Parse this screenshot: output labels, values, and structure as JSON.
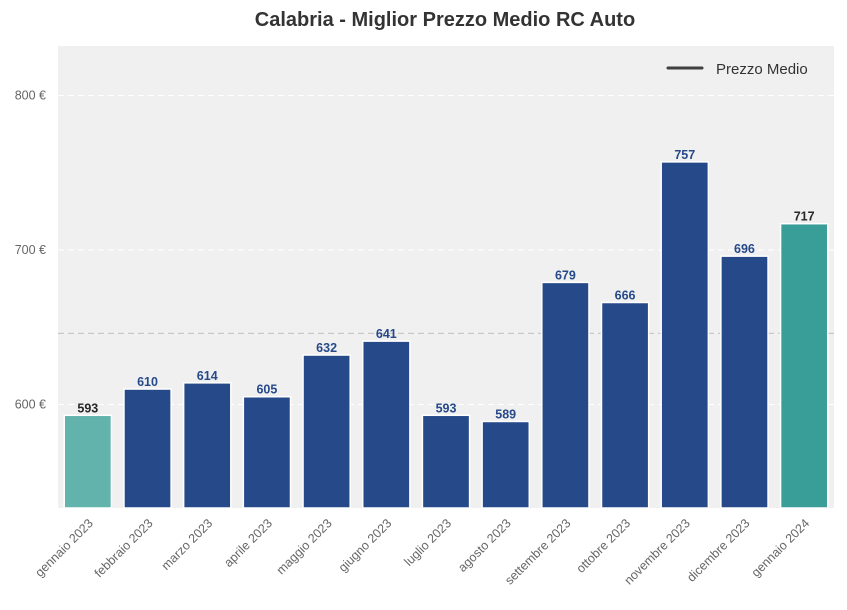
{
  "chart_data": {
    "type": "bar",
    "title": "Calabria - Miglior Prezzo Medio RC Auto",
    "xlabel": "",
    "ylabel": "",
    "categories": [
      "gennaio 2023",
      "febbraio 2023",
      "marzo 2023",
      "aprile 2023",
      "maggio 2023",
      "giugno 2023",
      "luglio 2023",
      "agosto 2023",
      "settembre 2023",
      "ottobre 2023",
      "novembre 2023",
      "dicembre 2023",
      "gennaio 2024"
    ],
    "values": [
      593,
      610,
      614,
      605,
      632,
      641,
      593,
      589,
      679,
      666,
      757,
      696,
      717
    ],
    "value_labels": [
      "593",
      "610",
      "614",
      "605",
      "632",
      "641",
      "593",
      "589",
      "679",
      "666",
      "757",
      "696",
      "717"
    ],
    "ylim": [
      533,
      832
    ],
    "yticks": [
      600,
      700,
      800
    ],
    "ytick_labels": [
      "600 €",
      "700 €",
      "800 €"
    ],
    "reference_line": {
      "name": "Prezzo Medio",
      "value": 646
    },
    "legend": {
      "position": "top-right",
      "entries": [
        "Prezzo Medio"
      ]
    },
    "grid": true,
    "colors": {
      "bar": "#26498a",
      "first_bar": "#62b3ac",
      "last_bar": "#3a9e98",
      "label_default": "#26498a",
      "label_highlight": "#262626",
      "background": "#f0f0f0",
      "reference_line": "#c8c8c8",
      "legend_line": "#404040"
    }
  }
}
